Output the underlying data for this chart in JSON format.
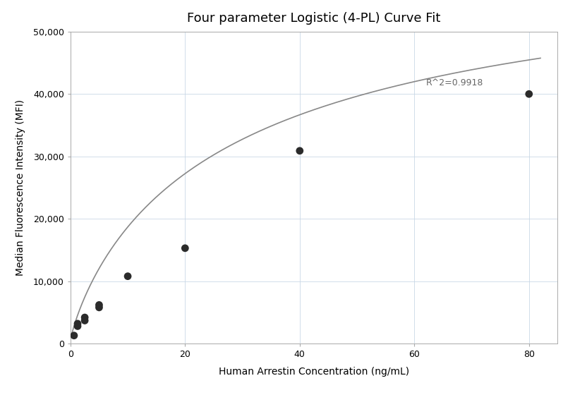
{
  "title": "Four parameter Logistic (4-PL) Curve Fit",
  "xlabel": "Human Arrestin Concentration (ng/mL)",
  "ylabel": "Median Fluorescence Intensity (MFI)",
  "scatter_x": [
    0.625,
    1.25,
    1.25,
    2.5,
    2.5,
    5.0,
    5.0,
    10.0,
    20.0,
    40.0,
    80.0
  ],
  "scatter_y": [
    1300,
    2800,
    3200,
    3700,
    4200,
    5800,
    6200,
    10800,
    15300,
    30900,
    40000
  ],
  "dot_color": "#2b2b2b",
  "dot_size": 60,
  "curve_color": "#888888",
  "curve_linewidth": 1.2,
  "r_squared_text": "R^2=0.9918",
  "xlim": [
    0,
    85
  ],
  "ylim": [
    0,
    50000
  ],
  "xticks": [
    0,
    20,
    40,
    60,
    80
  ],
  "yticks": [
    0,
    10000,
    20000,
    30000,
    40000,
    50000
  ],
  "ytick_labels": [
    "0",
    "10,000",
    "20,000",
    "30,000",
    "40,000",
    "50,000"
  ],
  "grid_color": "#c5d5e5",
  "grid_alpha": 0.8,
  "background_color": "#ffffff",
  "title_fontsize": 13,
  "label_fontsize": 10,
  "tick_fontsize": 9,
  "annotation_fontsize": 9,
  "annotation_color": "#666666",
  "spine_color": "#aaaaaa",
  "4pl_A": 500,
  "4pl_B": 0.85,
  "4pl_C": 30,
  "4pl_D": 65000
}
